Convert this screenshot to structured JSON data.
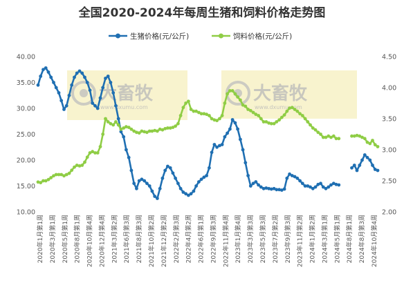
{
  "chart_data": {
    "type": "line",
    "title": "全国2020-2024年每周生猪和饲料价格走势图",
    "legend_position": "top-center",
    "grid": false,
    "left_axis": {
      "ylim": [
        10,
        40
      ],
      "ticks": [
        "10.00",
        "15.00",
        "20.00",
        "25.00",
        "30.00",
        "35.00",
        "40.00"
      ]
    },
    "right_axis": {
      "ylim": [
        2.0,
        4.5
      ],
      "ticks": [
        "2.00",
        "2.50",
        "3.00",
        "3.50",
        "4.00",
        "4.50"
      ]
    },
    "x_ticks": [
      "2020年1月第1周",
      "2020年3月第1周",
      "2020年5月第1周",
      "2020年8月第1周",
      "2020年10月第4周",
      "2020年12月第4周",
      "2021年3月第2周",
      "2021年6月第3周",
      "2021年8月第3周",
      "2021年10月第2周",
      "2021年12月第2周",
      "2022年2月第3周",
      "2022年4月第2周",
      "2022年6月第1周",
      "2022年9月第3周",
      "2022年11月第4周",
      "2023年1月第4周",
      "2023年3月第3周",
      "2023年5月第3周",
      "2023年7月第2周",
      "2023年9月第3周",
      "2023年11月第2周",
      "2024年1月第2周",
      "2024年3月第1周",
      "2024年5月第1周",
      "2024年8月第1周",
      "2024年8月第3周",
      "2024年10月第4周"
    ],
    "watermarks": [
      {
        "text": "大畜牧",
        "sub": "www.dxumu.com"
      },
      {
        "text": "大畜牧",
        "sub": "www.dxumu.com"
      }
    ],
    "series": [
      {
        "name": "生猪价格(元/公斤)",
        "axis": "left",
        "color": "#1f6fb2",
        "points": [
          [
            0,
            34.5
          ],
          [
            1,
            36.2
          ],
          [
            2,
            37.5
          ],
          [
            3,
            37.8
          ],
          [
            4,
            37.0
          ],
          [
            5,
            36.0
          ],
          [
            6,
            35.0
          ],
          [
            7,
            34.0
          ],
          [
            8,
            33.0
          ],
          [
            9,
            31.5
          ],
          [
            10,
            29.8
          ],
          [
            11,
            30.5
          ],
          [
            12,
            32.5
          ],
          [
            13,
            34.5
          ],
          [
            14,
            36.0
          ],
          [
            15,
            36.8
          ],
          [
            16,
            37.2
          ],
          [
            17,
            36.8
          ],
          [
            18,
            36.0
          ],
          [
            19,
            35.0
          ],
          [
            20,
            33.5
          ],
          [
            21,
            31.0
          ],
          [
            22,
            30.5
          ],
          [
            23,
            30.0
          ],
          [
            24,
            32.0
          ],
          [
            25,
            34.0
          ],
          [
            26,
            35.8
          ],
          [
            27,
            36.2
          ],
          [
            28,
            35.0
          ],
          [
            29,
            33.0
          ],
          [
            30,
            30.5
          ],
          [
            31,
            28.0
          ],
          [
            32,
            25.5
          ],
          [
            33,
            24.5
          ],
          [
            34,
            22.0
          ],
          [
            35,
            20.5
          ],
          [
            36,
            18.0
          ],
          [
            37,
            15.5
          ],
          [
            38,
            14.5
          ],
          [
            39,
            16.0
          ],
          [
            40,
            16.3
          ],
          [
            41,
            16.0
          ],
          [
            42,
            15.5
          ],
          [
            43,
            15.0
          ],
          [
            44,
            14.0
          ],
          [
            45,
            13.0
          ],
          [
            46,
            12.6
          ],
          [
            47,
            14.5
          ],
          [
            48,
            16.5
          ],
          [
            49,
            18.0
          ],
          [
            50,
            18.8
          ],
          [
            51,
            18.5
          ],
          [
            52,
            17.5
          ],
          [
            53,
            16.5
          ],
          [
            54,
            15.5
          ],
          [
            55,
            14.5
          ],
          [
            56,
            13.8
          ],
          [
            57,
            13.5
          ],
          [
            58,
            13.2
          ],
          [
            59,
            13.5
          ],
          [
            60,
            14.0
          ],
          [
            61,
            15.0
          ],
          [
            62,
            15.8
          ],
          [
            63,
            16.3
          ],
          [
            64,
            16.7
          ],
          [
            65,
            17.0
          ],
          [
            66,
            18.5
          ],
          [
            67,
            21.5
          ],
          [
            68,
            23.0
          ],
          [
            69,
            22.5
          ],
          [
            70,
            22.8
          ],
          [
            71,
            23.0
          ],
          [
            72,
            24.5
          ],
          [
            73,
            25.2
          ],
          [
            74,
            26.0
          ],
          [
            75,
            27.8
          ],
          [
            76,
            27.2
          ],
          [
            77,
            26.0
          ],
          [
            78,
            24.0
          ],
          [
            79,
            22.0
          ],
          [
            80,
            19.5
          ],
          [
            81,
            17.0
          ],
          [
            82,
            15.0
          ],
          [
            83,
            15.5
          ],
          [
            84,
            15.8
          ],
          [
            85,
            15.2
          ],
          [
            86,
            14.8
          ],
          [
            87,
            14.5
          ],
          [
            88,
            14.6
          ],
          [
            89,
            14.5
          ],
          [
            90,
            14.4
          ],
          [
            91,
            14.5
          ],
          [
            92,
            14.3
          ],
          [
            93,
            14.3
          ],
          [
            94,
            14.2
          ],
          [
            95,
            14.4
          ],
          [
            96,
            16.5
          ],
          [
            97,
            17.3
          ],
          [
            98,
            17.0
          ],
          [
            99,
            16.8
          ],
          [
            100,
            16.5
          ],
          [
            101,
            16.0
          ],
          [
            102,
            15.5
          ],
          [
            103,
            15.0
          ],
          [
            104,
            15.0
          ],
          [
            105,
            14.8
          ],
          [
            106,
            14.5
          ],
          [
            107,
            14.8
          ],
          [
            108,
            15.3
          ],
          [
            109,
            15.5
          ],
          [
            110,
            14.8
          ],
          [
            111,
            14.5
          ],
          [
            112,
            14.8
          ],
          [
            113,
            15.2
          ],
          [
            114,
            15.5
          ],
          [
            115,
            15.3
          ],
          [
            116,
            15.2
          ],
          [
            117,
            null
          ],
          [
            118,
            null
          ],
          [
            119,
            null
          ],
          [
            120,
            null
          ],
          [
            121,
            18.5
          ],
          [
            122,
            19.0
          ],
          [
            123,
            18.0
          ],
          [
            124,
            19.0
          ],
          [
            125,
            20.0
          ],
          [
            126,
            21.0
          ],
          [
            127,
            20.5
          ],
          [
            128,
            20.0
          ],
          [
            129,
            19.0
          ],
          [
            130,
            18.2
          ],
          [
            131,
            18.0
          ]
        ]
      },
      {
        "name": "饲料价格(元/公斤)",
        "axis": "right",
        "color": "#8fcd45",
        "points": [
          [
            0,
            2.48
          ],
          [
            1,
            2.47
          ],
          [
            2,
            2.5
          ],
          [
            3,
            2.5
          ],
          [
            4,
            2.52
          ],
          [
            5,
            2.55
          ],
          [
            6,
            2.58
          ],
          [
            7,
            2.6
          ],
          [
            8,
            2.6
          ],
          [
            9,
            2.6
          ],
          [
            10,
            2.58
          ],
          [
            11,
            2.6
          ],
          [
            12,
            2.62
          ],
          [
            13,
            2.67
          ],
          [
            14,
            2.72
          ],
          [
            15,
            2.75
          ],
          [
            16,
            2.74
          ],
          [
            17,
            2.75
          ],
          [
            18,
            2.8
          ],
          [
            19,
            2.88
          ],
          [
            20,
            2.95
          ],
          [
            21,
            2.97
          ],
          [
            22,
            2.95
          ],
          [
            23,
            2.95
          ],
          [
            24,
            3.05
          ],
          [
            25,
            3.25
          ],
          [
            26,
            3.5
          ],
          [
            27,
            3.45
          ],
          [
            28,
            3.42
          ],
          [
            29,
            3.4
          ],
          [
            30,
            3.45
          ],
          [
            31,
            3.4
          ],
          [
            32,
            3.33
          ],
          [
            33,
            3.35
          ],
          [
            34,
            3.37
          ],
          [
            35,
            3.36
          ],
          [
            36,
            3.33
          ],
          [
            37,
            3.3
          ],
          [
            38,
            3.28
          ],
          [
            39,
            3.27
          ],
          [
            40,
            3.3
          ],
          [
            41,
            3.29
          ],
          [
            42,
            3.28
          ],
          [
            43,
            3.3
          ],
          [
            44,
            3.3
          ],
          [
            45,
            3.31
          ],
          [
            46,
            3.3
          ],
          [
            47,
            3.33
          ],
          [
            48,
            3.32
          ],
          [
            49,
            3.34
          ],
          [
            50,
            3.35
          ],
          [
            51,
            3.35
          ],
          [
            52,
            3.36
          ],
          [
            53,
            3.38
          ],
          [
            54,
            3.42
          ],
          [
            55,
            3.55
          ],
          [
            56,
            3.68
          ],
          [
            57,
            3.75
          ],
          [
            58,
            3.78
          ],
          [
            59,
            3.65
          ],
          [
            60,
            3.62
          ],
          [
            61,
            3.62
          ],
          [
            62,
            3.6
          ],
          [
            63,
            3.58
          ],
          [
            64,
            3.58
          ],
          [
            65,
            3.57
          ],
          [
            66,
            3.55
          ],
          [
            67,
            3.5
          ],
          [
            68,
            3.48
          ],
          [
            69,
            3.47
          ],
          [
            70,
            3.5
          ],
          [
            71,
            3.55
          ],
          [
            72,
            3.75
          ],
          [
            73,
            3.9
          ],
          [
            74,
            3.95
          ],
          [
            75,
            3.95
          ],
          [
            76,
            3.9
          ],
          [
            77,
            3.85
          ],
          [
            78,
            3.8
          ],
          [
            79,
            3.72
          ],
          [
            80,
            3.7
          ],
          [
            81,
            3.65
          ],
          [
            82,
            3.63
          ],
          [
            83,
            3.6
          ],
          [
            84,
            3.57
          ],
          [
            85,
            3.55
          ],
          [
            86,
            3.5
          ],
          [
            87,
            3.45
          ],
          [
            88,
            3.45
          ],
          [
            89,
            3.43
          ],
          [
            90,
            3.42
          ],
          [
            91,
            3.42
          ],
          [
            92,
            3.45
          ],
          [
            93,
            3.48
          ],
          [
            94,
            3.52
          ],
          [
            95,
            3.56
          ],
          [
            96,
            3.62
          ],
          [
            97,
            3.67
          ],
          [
            98,
            3.68
          ],
          [
            99,
            3.65
          ],
          [
            100,
            3.62
          ],
          [
            101,
            3.58
          ],
          [
            102,
            3.55
          ],
          [
            103,
            3.5
          ],
          [
            104,
            3.45
          ],
          [
            105,
            3.4
          ],
          [
            106,
            3.35
          ],
          [
            107,
            3.32
          ],
          [
            108,
            3.28
          ],
          [
            109,
            3.25
          ],
          [
            110,
            3.2
          ],
          [
            111,
            3.2
          ],
          [
            112,
            3.22
          ],
          [
            113,
            3.2
          ],
          [
            114,
            3.22
          ],
          [
            115,
            3.18
          ],
          [
            116,
            3.18
          ],
          [
            117,
            null
          ],
          [
            118,
            null
          ],
          [
            119,
            null
          ],
          [
            120,
            null
          ],
          [
            121,
            3.22
          ],
          [
            122,
            3.22
          ],
          [
            123,
            3.23
          ],
          [
            124,
            3.22
          ],
          [
            125,
            3.2
          ],
          [
            126,
            3.18
          ],
          [
            127,
            3.12
          ],
          [
            128,
            3.1
          ],
          [
            129,
            3.15
          ],
          [
            130,
            3.08
          ],
          [
            131,
            3.05
          ]
        ]
      }
    ]
  }
}
